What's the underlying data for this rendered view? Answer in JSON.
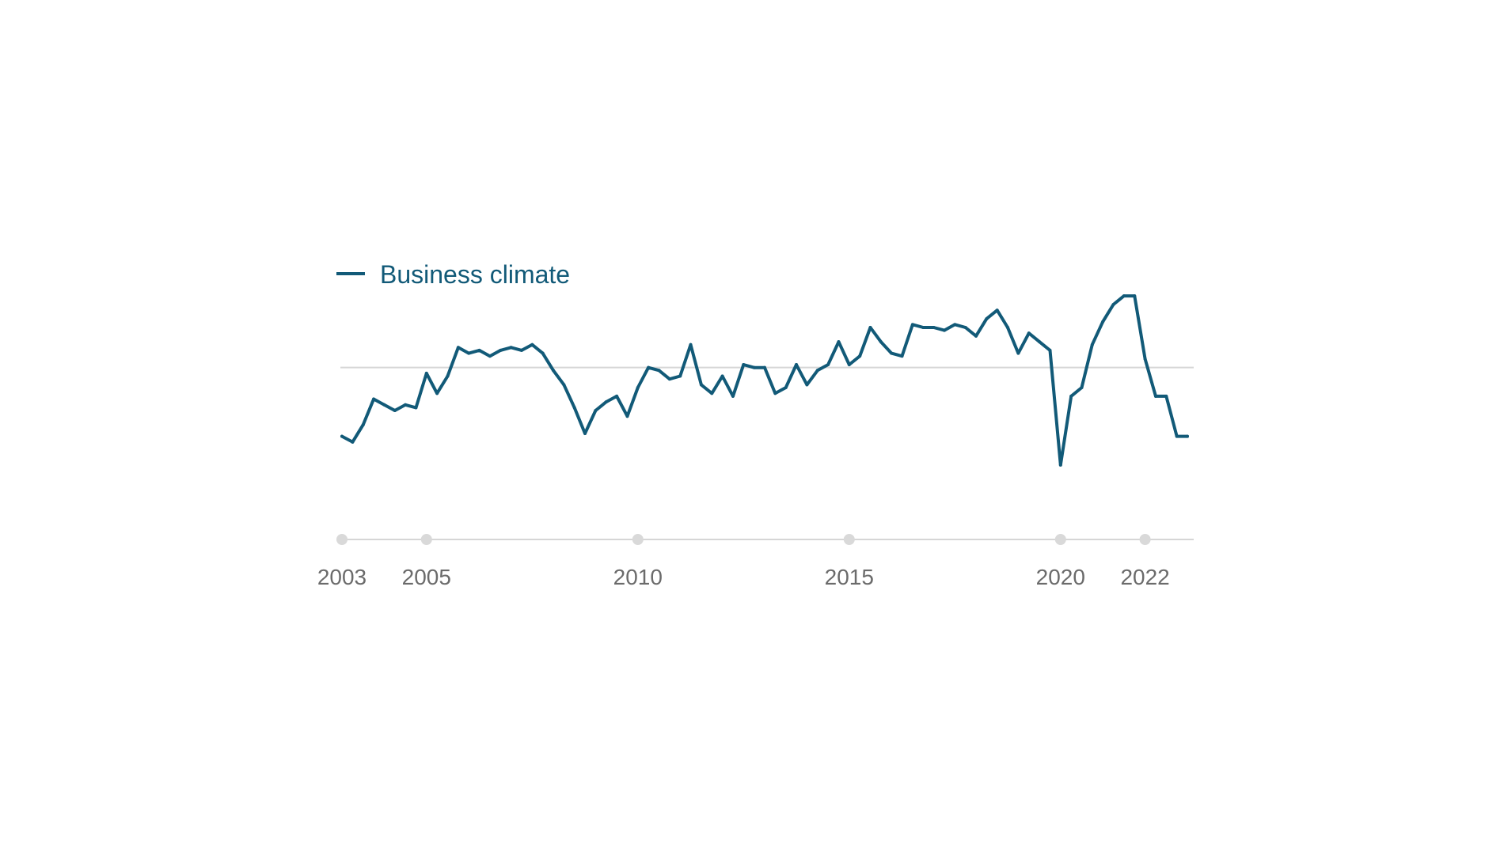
{
  "chart_data": {
    "type": "line",
    "title": "",
    "xlabel": "",
    "ylabel": "",
    "x_ticks": [
      2003,
      2005,
      2010,
      2015,
      2020,
      2022
    ],
    "ylim": [
      -30,
      15
    ],
    "reference_line": 0,
    "grid": false,
    "legend": "top-left",
    "series": [
      {
        "name": "Business climate",
        "color": "#125a78",
        "x": [
          2003.0,
          2003.25,
          2003.5,
          2003.75,
          2004.0,
          2004.25,
          2004.5,
          2004.75,
          2005.0,
          2005.25,
          2005.5,
          2005.75,
          2006.0,
          2006.25,
          2006.5,
          2006.75,
          2007.0,
          2007.25,
          2007.5,
          2007.75,
          2008.0,
          2008.25,
          2008.5,
          2008.75,
          2009.0,
          2009.25,
          2009.5,
          2009.75,
          2010.0,
          2010.25,
          2010.5,
          2010.75,
          2011.0,
          2011.25,
          2011.5,
          2011.75,
          2012.0,
          2012.25,
          2012.5,
          2012.75,
          2013.0,
          2013.25,
          2013.5,
          2013.75,
          2014.0,
          2014.25,
          2014.5,
          2014.75,
          2015.0,
          2015.25,
          2015.5,
          2015.75,
          2016.0,
          2016.25,
          2016.5,
          2016.75,
          2017.0,
          2017.25,
          2017.5,
          2017.75,
          2018.0,
          2018.25,
          2018.5,
          2018.75,
          2019.0,
          2019.25,
          2019.5,
          2019.75,
          2020.0,
          2020.25,
          2020.5,
          2020.75,
          2021.0,
          2021.25,
          2021.5,
          2021.75,
          2022.0,
          2022.25,
          2022.5,
          2022.75,
          2023.0
        ],
        "values": [
          -12.0,
          -13.0,
          -10.0,
          -5.5,
          -6.5,
          -7.5,
          -6.5,
          -7.0,
          -1.0,
          -4.5,
          -1.5,
          3.5,
          2.5,
          3.0,
          2.0,
          3.0,
          3.5,
          3.0,
          4.0,
          2.5,
          -0.5,
          -3.0,
          -7.0,
          -11.5,
          -7.5,
          -6.0,
          -5.0,
          -8.5,
          -3.5,
          0.0,
          -0.5,
          -2.0,
          -1.5,
          4.0,
          -3.0,
          -4.5,
          -1.5,
          -5.0,
          0.5,
          0.0,
          0.0,
          -4.5,
          -3.5,
          0.5,
          -3.0,
          -0.5,
          0.5,
          4.5,
          0.5,
          2.0,
          7.0,
          4.5,
          2.5,
          2.0,
          7.5,
          7.0,
          7.0,
          6.5,
          7.5,
          7.0,
          5.5,
          8.5,
          10.0,
          7.0,
          2.5,
          6.0,
          4.5,
          3.0,
          -17.0,
          -5.0,
          -3.5,
          4.0,
          8.0,
          11.0,
          12.5,
          12.5,
          1.5,
          -5.0,
          -5.0,
          -12.0,
          -12.0
        ]
      }
    ]
  }
}
